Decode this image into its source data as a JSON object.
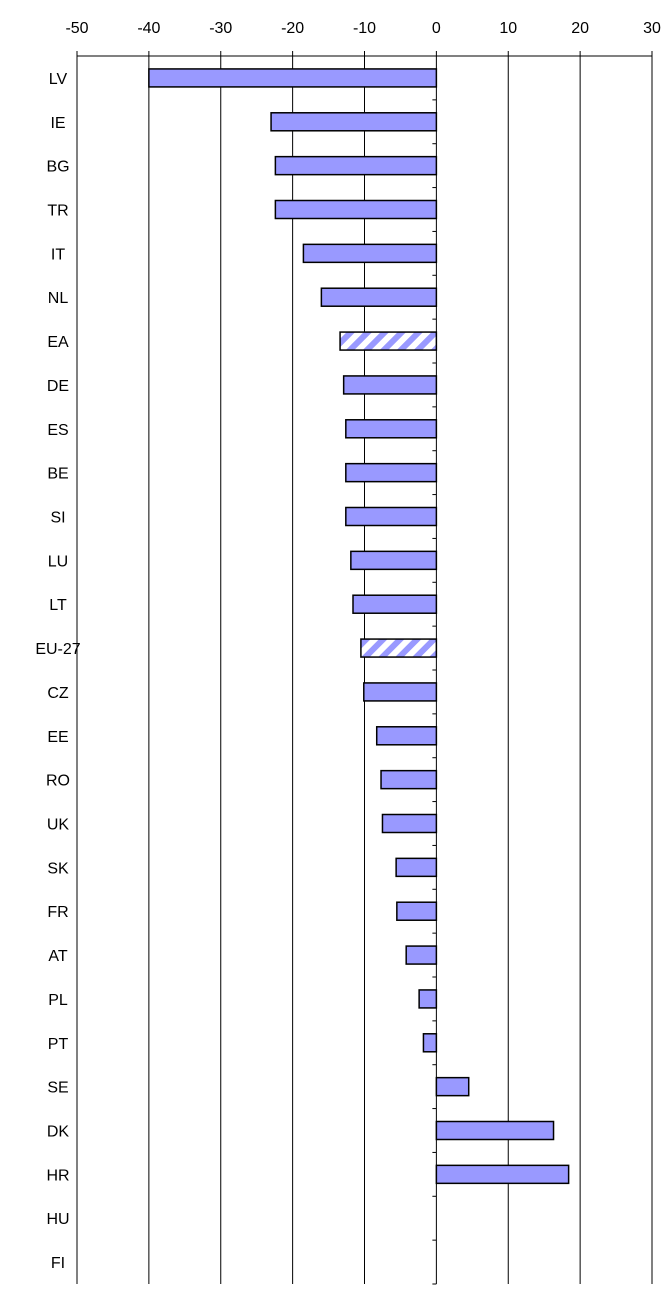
{
  "chart_data": {
    "type": "bar",
    "orientation": "horizontal",
    "title": "",
    "xlabel": "",
    "ylabel": "",
    "xlim": [
      -50,
      30
    ],
    "xticks": [
      -50,
      -40,
      -30,
      -20,
      -10,
      0,
      10,
      20,
      30
    ],
    "xtick_labels": [
      "-50",
      "-40",
      "-30",
      "-20",
      "-10",
      "0",
      "10",
      "20",
      "30"
    ],
    "axis_position": "top",
    "grid": "vertical",
    "categories": [
      "LV",
      "IE",
      "BG",
      "TR",
      "IT",
      "NL",
      "EA",
      "DE",
      "ES",
      "BE",
      "SI",
      "LU",
      "LT",
      "EU-27",
      "CZ",
      "EE",
      "RO",
      "UK",
      "SK",
      "FR",
      "AT",
      "PL",
      "PT",
      "SE",
      "DK",
      "HR",
      "HU",
      "FI"
    ],
    "values": [
      -40.0,
      -23.0,
      -22.4,
      -22.4,
      -18.5,
      -16.0,
      -13.4,
      -12.9,
      -12.6,
      -12.6,
      -12.6,
      -11.9,
      -11.6,
      -10.5,
      -10.1,
      -8.3,
      -7.7,
      -7.5,
      -5.6,
      -5.5,
      -4.2,
      -2.4,
      -1.8,
      4.5,
      16.3,
      18.4,
      null,
      null
    ],
    "aggregates": [
      "EA",
      "EU-27"
    ],
    "colors": {
      "bar_fill": "#9999ff",
      "bar_stroke": "#000000",
      "aggregate_stripe": "#9999ff",
      "grid": "#000000"
    }
  }
}
